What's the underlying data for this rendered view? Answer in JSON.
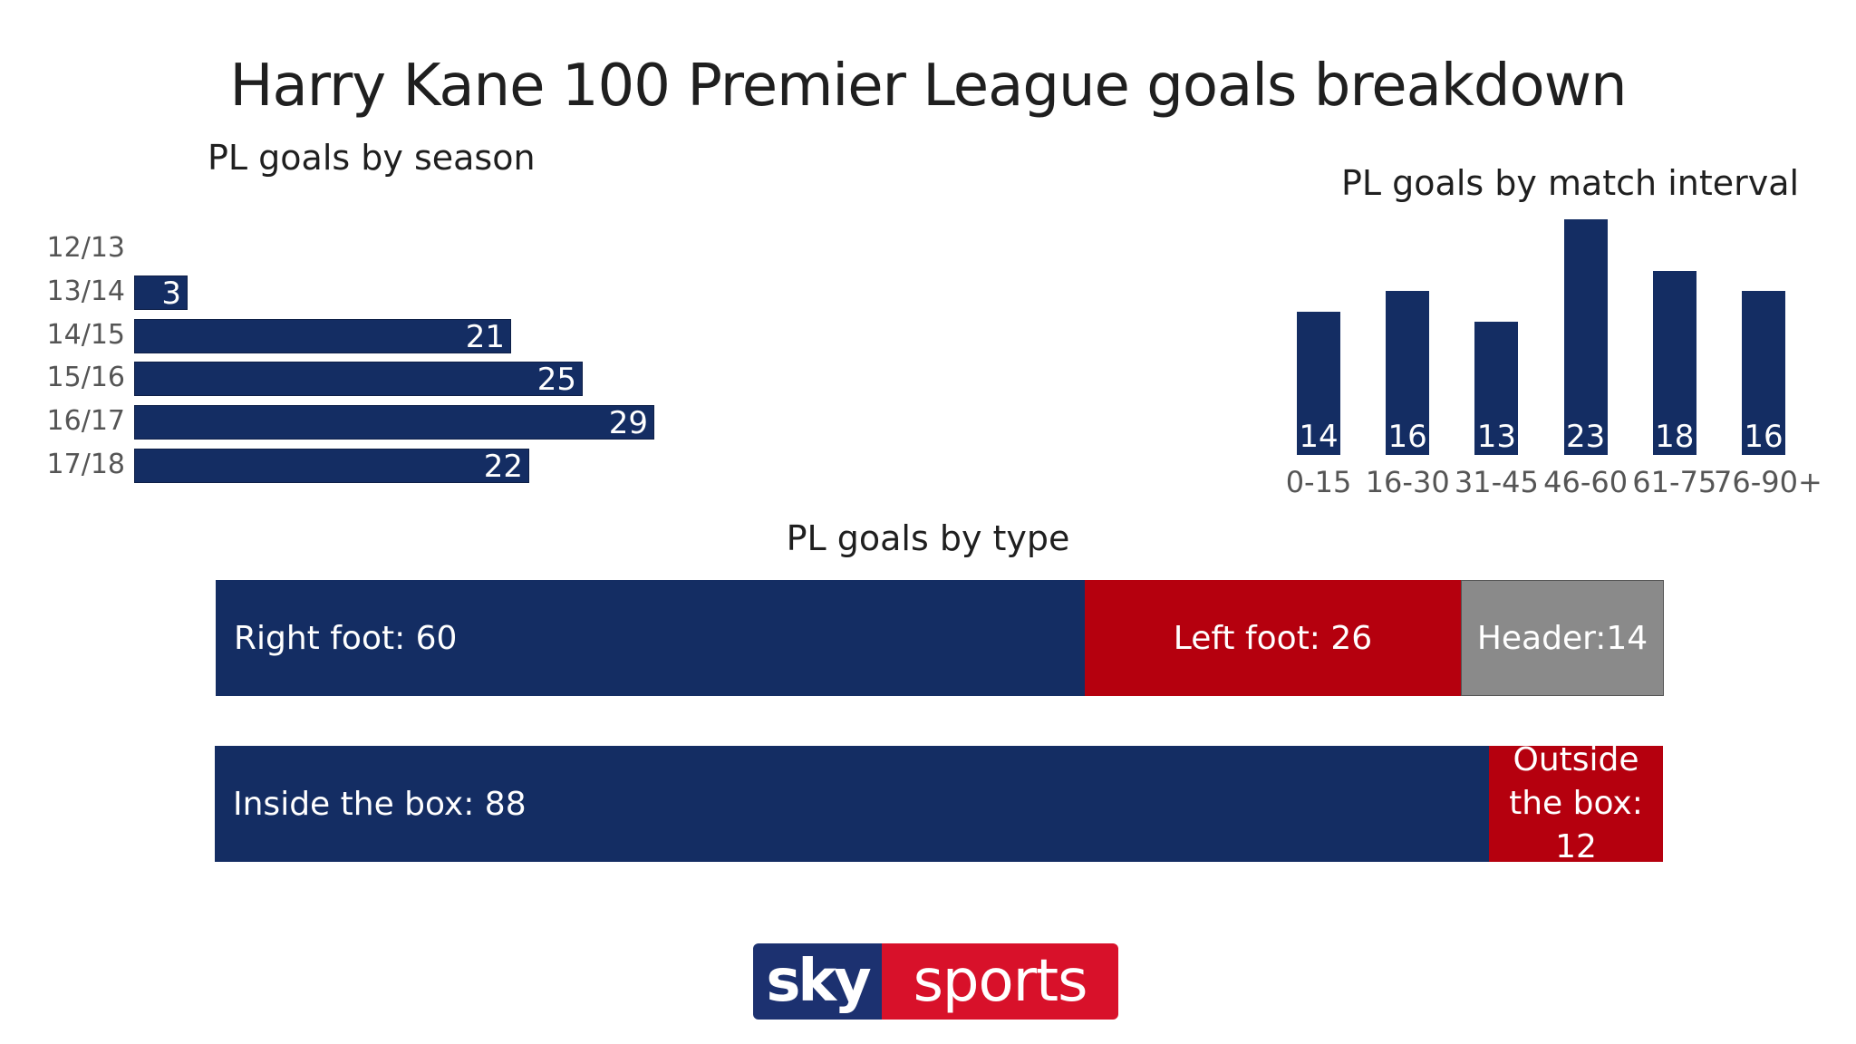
{
  "title": "Harry Kane 100 Premier League goals breakdown",
  "colors": {
    "navy": "#142d63",
    "red": "#b5000e",
    "grey": "#8a8a8a",
    "logo_navy": "#1c3170",
    "logo_red": "#d8112a"
  },
  "chart_data": [
    {
      "type": "bar",
      "orientation": "horizontal",
      "title": "PL goals by season",
      "categories": [
        "12/13",
        "13/14",
        "14/15",
        "15/16",
        "16/17",
        "17/18"
      ],
      "values": [
        0,
        3,
        21,
        25,
        29,
        22
      ],
      "value_labels": [
        "",
        "3",
        "21",
        "25",
        "29",
        "22"
      ]
    },
    {
      "type": "bar",
      "title": "PL goals by match interval",
      "categories": [
        "0-15",
        "16-30",
        "31-45",
        "46-60",
        "61-75",
        "76-90+"
      ],
      "values": [
        14,
        16,
        13,
        23,
        18,
        16
      ]
    },
    {
      "type": "bar",
      "stacked": true,
      "orientation": "horizontal",
      "title": "PL goals by type",
      "rows": [
        {
          "segments": [
            {
              "label": "Right foot: 60",
              "value": 60,
              "color": "#142d63",
              "align": "left"
            },
            {
              "label": "Left foot: 26",
              "value": 26,
              "color": "#b5000e",
              "align": "center"
            },
            {
              "label": "Header:14",
              "value": 14,
              "color": "#8a8a8a",
              "align": "center"
            }
          ]
        },
        {
          "segments": [
            {
              "label": "Inside the box: 88",
              "value": 88,
              "color": "#142d63",
              "align": "left"
            },
            {
              "label": "Outside the box: 12",
              "value": 12,
              "color": "#b5000e",
              "align": "center"
            }
          ]
        }
      ]
    }
  ],
  "logo": {
    "sky": "sky",
    "sports": "sports"
  }
}
